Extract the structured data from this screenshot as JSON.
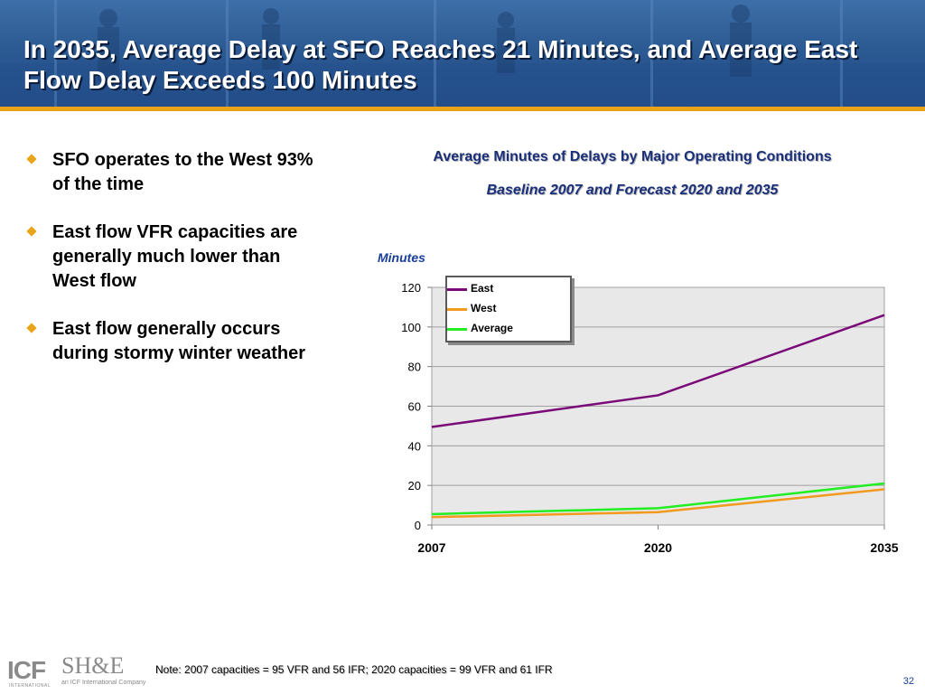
{
  "slide": {
    "title": "In 2035, Average Delay at SFO Reaches 21 Minutes, and Average East Flow Delay Exceeds 100 Minutes",
    "note": "Note: 2007 capacities = 95 VFR and 56 IFR; 2020 capacities = 99 VFR and 61 IFR",
    "page_number": "32",
    "colors": {
      "header": "#2c5a93",
      "accent": "#e8a419",
      "chart_title": "#1a2f7a"
    }
  },
  "bullets": [
    {
      "text": "SFO operates to the West 93% of the time",
      "icon": "diamond-bullet-icon"
    },
    {
      "text": "East flow VFR capacities are generally much lower than West flow",
      "icon": "diamond-bullet-icon"
    },
    {
      "text": "East flow generally occurs during stormy winter weather",
      "icon": "diamond-bullet-icon"
    }
  ],
  "logos": {
    "icf": "ICF",
    "icf_sub": "INTERNATIONAL",
    "she": "SH&E",
    "she_sub": "an ICF International Company"
  },
  "chart_data": {
    "type": "line",
    "title": "Average Minutes of Delays by Major Operating Conditions",
    "subtitle": "Baseline 2007 and Forecast 2020 and 2035",
    "ylabel": "Minutes",
    "xlabel": "",
    "x": [
      "2007",
      "2020",
      "2035"
    ],
    "ylim": [
      0,
      120
    ],
    "yticks": [
      "0",
      "20",
      "40",
      "60",
      "80",
      "100",
      "120"
    ],
    "grid": true,
    "legend_position": "top-left",
    "series": [
      {
        "name": "East",
        "values": [
          49.5,
          65.5,
          106
        ],
        "color": "#7a0a78"
      },
      {
        "name": "West",
        "values": [
          4,
          6.5,
          18
        ],
        "color": "#f29a1d"
      },
      {
        "name": "Average",
        "values": [
          5.5,
          8.5,
          21
        ],
        "color": "#22ee22"
      }
    ]
  }
}
